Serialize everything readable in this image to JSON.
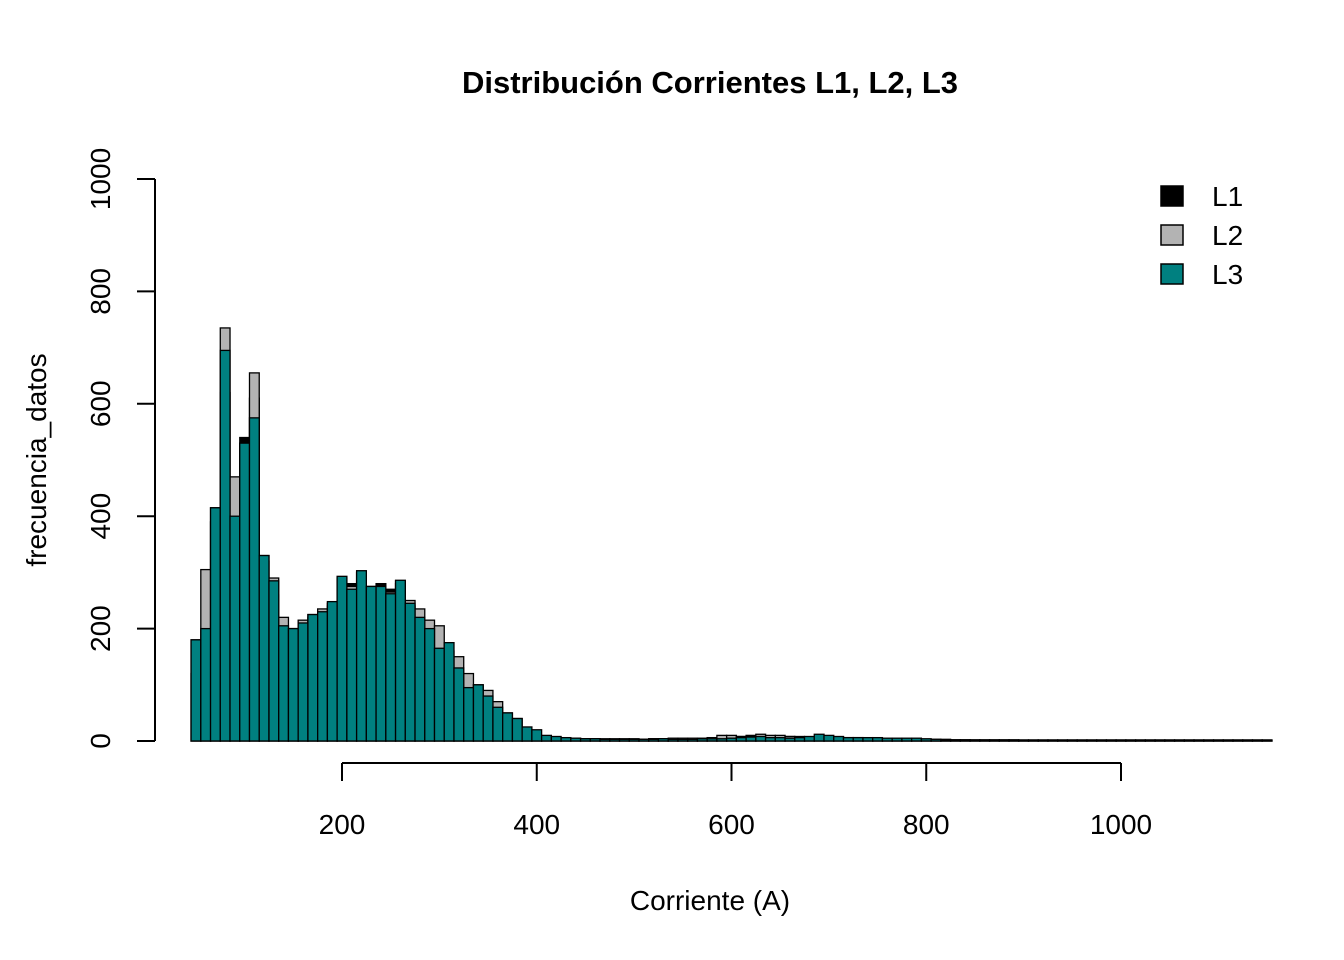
{
  "chart_data": {
    "type": "bar",
    "title": "Distribución Corrientes L1, L2, L3",
    "xlabel": "Corriente (A)",
    "ylabel": "frecuencia_datos",
    "xlim": [
      40,
      1140
    ],
    "ylim": [
      0,
      1000
    ],
    "xticks": [
      200,
      400,
      600,
      800,
      1000
    ],
    "yticks": [
      0,
      200,
      400,
      600,
      800,
      1000
    ],
    "bin_width": 10,
    "x_start": 45,
    "grid": false,
    "legend_position": "top-right",
    "series": [
      {
        "name": "L1",
        "color": "#000000",
        "values": [
          120,
          180,
          390,
          620,
          430,
          540,
          610,
          320,
          260,
          200,
          200,
          200,
          220,
          230,
          240,
          290,
          280,
          300,
          270,
          280,
          270,
          280,
          240,
          210,
          180,
          170,
          120,
          90,
          80,
          50,
          40,
          30,
          20,
          12,
          10,
          8,
          6,
          5,
          4,
          4,
          4,
          4,
          3,
          3,
          3,
          3,
          3,
          4,
          4,
          4,
          4,
          4,
          4,
          5,
          6,
          6,
          8,
          10,
          8,
          8,
          8,
          8,
          7,
          6,
          7,
          7,
          7,
          6,
          6,
          5,
          4,
          3,
          3,
          2,
          2,
          2,
          2,
          2,
          2,
          2,
          1,
          1,
          1,
          1,
          1,
          1,
          1,
          1,
          1,
          1,
          1,
          1,
          1,
          1,
          1,
          1,
          1,
          1,
          1,
          1,
          1,
          1,
          1,
          1,
          1,
          1,
          1,
          1,
          1,
          1,
          1
        ]
      },
      {
        "name": "L2",
        "color": "#b3b3b3",
        "values": [
          180,
          305,
          415,
          735,
          470,
          530,
          655,
          330,
          290,
          220,
          200,
          215,
          225,
          235,
          245,
          290,
          275,
          300,
          275,
          275,
          265,
          285,
          250,
          235,
          215,
          205,
          160,
          150,
          120,
          100,
          90,
          70,
          50,
          40,
          20,
          10,
          8,
          6,
          5,
          5,
          4,
          4,
          4,
          4,
          4,
          4,
          3,
          4,
          4,
          5,
          5,
          5,
          5,
          6,
          10,
          10,
          8,
          8,
          12,
          10,
          10,
          8,
          8,
          7,
          7,
          7,
          7,
          6,
          6,
          5,
          4,
          3,
          3,
          3,
          2,
          3,
          3,
          3,
          2,
          2,
          2,
          2,
          2,
          2,
          2,
          2,
          2,
          2,
          2,
          2,
          2,
          2,
          2,
          2,
          2,
          2,
          2,
          2,
          2,
          2,
          2,
          2,
          2,
          2,
          2,
          2,
          2,
          2,
          2,
          2,
          2
        ]
      },
      {
        "name": "L3",
        "color": "#008080",
        "values": [
          180,
          200,
          415,
          695,
          400,
          530,
          575,
          330,
          285,
          205,
          200,
          210,
          225,
          230,
          248,
          293,
          270,
          303,
          275,
          275,
          262,
          286,
          245,
          220,
          200,
          165,
          175,
          130,
          95,
          100,
          80,
          60,
          50,
          40,
          25,
          20,
          10,
          8,
          6,
          5,
          4,
          4,
          3,
          3,
          3,
          3,
          3,
          3,
          4,
          3,
          3,
          3,
          4,
          4,
          4,
          5,
          6,
          7,
          8,
          6,
          6,
          5,
          6,
          8,
          12,
          10,
          8,
          6,
          6,
          6,
          6,
          5,
          5,
          5,
          5,
          4,
          3,
          2,
          2,
          2,
          2,
          2,
          2,
          2,
          2,
          1,
          1,
          1,
          1,
          1,
          1,
          1,
          1,
          1,
          1,
          1,
          1,
          1,
          1,
          1,
          1,
          1,
          1,
          1,
          1,
          1,
          1,
          1,
          1,
          1,
          1
        ]
      }
    ]
  }
}
